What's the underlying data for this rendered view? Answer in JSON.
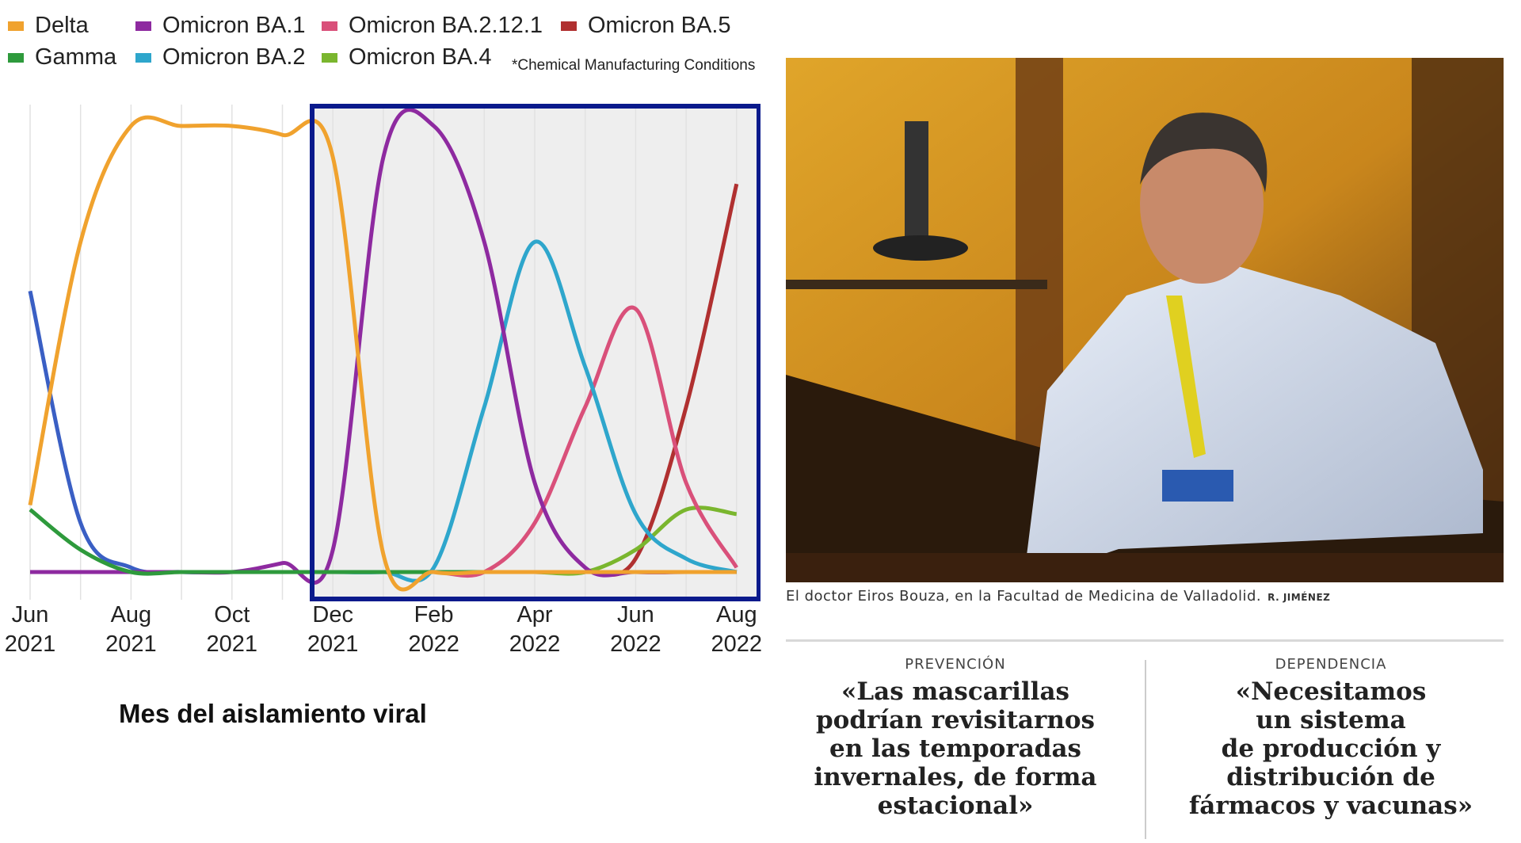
{
  "chart_data": {
    "type": "line",
    "x_label": "Mes del aislamiento viral",
    "note": "*Chemical Manufacturing Conditions",
    "categories": [
      "Jun 2021",
      null,
      "Aug 2021",
      null,
      "Oct 2021",
      null,
      "Dec 2021",
      null,
      "Feb 2022",
      null,
      "Apr 2022",
      null,
      "Jun 2022",
      null,
      "Aug 2022"
    ],
    "ylim": [
      0,
      100
    ],
    "grid": true,
    "series": [
      {
        "name": "Delta",
        "color": "#f0a22e",
        "values": [
          15,
          74,
          100,
          100,
          100,
          98,
          93,
          4,
          0,
          0,
          0,
          0,
          0,
          0,
          0
        ]
      },
      {
        "name": "Gamma",
        "color": "#2e9a3c",
        "values": [
          14,
          5,
          0,
          0,
          0,
          0,
          0,
          0,
          0,
          0,
          0,
          0,
          0,
          0,
          0
        ]
      },
      {
        "name": "Omicron BA.1",
        "color": "#8e2aa0",
        "values": [
          0,
          0,
          0,
          0,
          0,
          2,
          5,
          93,
          100,
          74,
          20,
          1,
          0,
          0,
          0
        ]
      },
      {
        "name": "Omicron BA.2",
        "color": "#2ea6cc",
        "values": [
          0,
          0,
          0,
          0,
          0,
          0,
          0,
          0,
          1,
          37,
          74,
          46,
          13,
          3,
          0
        ]
      },
      {
        "name": "Omicron BA.2.12.1",
        "color": "#d9507a",
        "values": [
          0,
          0,
          0,
          0,
          0,
          0,
          0,
          0,
          0,
          0,
          11,
          37,
          59,
          20,
          1
        ]
      },
      {
        "name": "Omicron BA.4",
        "color": "#7ab62e",
        "values": [
          0,
          0,
          0,
          0,
          0,
          0,
          0,
          0,
          0,
          0,
          0,
          0,
          5,
          14,
          13
        ]
      },
      {
        "name": "Omicron BA.5",
        "color": "#b03030",
        "values": [
          0,
          0,
          0,
          0,
          0,
          0,
          0,
          0,
          0,
          0,
          0,
          0,
          3,
          37,
          87
        ]
      },
      {
        "color": "#3a5fc4",
        "values": [
          63,
          11,
          1,
          0,
          0,
          0,
          0,
          0,
          0,
          0,
          0,
          0,
          0,
          0,
          0
        ]
      }
    ]
  },
  "article": {
    "caption": "El doctor Eiros Bouza, en la Facultad de Medicina de Valladolid.",
    "credit": "R. JIMÉNEZ",
    "columns": [
      {
        "section": "PREVENCIÓN",
        "quote_lines": [
          "«Las mascarillas",
          "podrían revisitarnos",
          "en las temporadas",
          "invernales, de forma",
          "estacional»"
        ]
      },
      {
        "section": "DEPENDENCIA",
        "quote_lines": [
          "«Necesitamos",
          "un sistema",
          "de producción y",
          "distribución de",
          "fármacos y vacunas»"
        ]
      }
    ]
  }
}
